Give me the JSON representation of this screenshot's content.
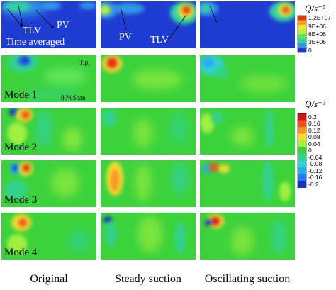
{
  "columns": [
    {
      "label": "Original"
    },
    {
      "label": "Steady suction"
    },
    {
      "label": "Oscillating suction"
    }
  ],
  "rows": [
    {
      "label": ""
    },
    {
      "label": "Mode 1"
    },
    {
      "label": "Mode 2"
    },
    {
      "label": "Mode 3"
    },
    {
      "label": "Mode 4"
    }
  ],
  "annotations": {
    "tlv_original": "TLV",
    "pv_original": "PV",
    "time_averaged": "Time averaged",
    "pv_steady": "PV",
    "tlv_steady": "TLV",
    "tip": "Tip",
    "span": "80%Span"
  },
  "colorbar_top": {
    "title": "Q/s⁻²",
    "labels": [
      "1.2E+07",
      "9E+06",
      "6E+06",
      "3E+06",
      "0"
    ],
    "colors": [
      "#e03a14",
      "#f5a028",
      "#f0e832",
      "#b8f03c",
      "#5ee65a",
      "#30d2a0",
      "#3296e6",
      "#1e3cd2"
    ]
  },
  "colorbar_modes": {
    "title": "Q/s⁻²",
    "labels": [
      "0.2",
      "0.16",
      "0.12",
      "0.08",
      "0.04",
      "0",
      "-0.04",
      "-0.08",
      "-0.12",
      "-0.16",
      "-0.2"
    ],
    "colors": [
      "#d21414",
      "#f0501e",
      "#f59628",
      "#f5dc32",
      "#a0f03c",
      "#3cd23c",
      "#32d28c",
      "#32d2d2",
      "#28aaf0",
      "#2878f0",
      "#1432c8"
    ]
  }
}
